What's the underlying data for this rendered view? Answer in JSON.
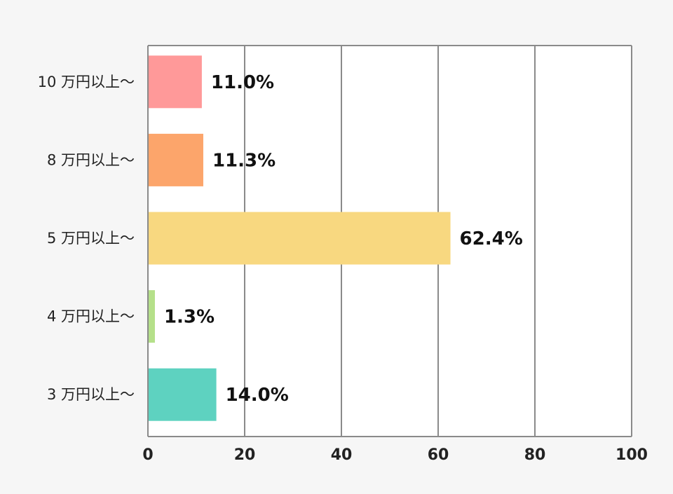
{
  "chart_data": {
    "type": "bar",
    "orientation": "horizontal",
    "categories": [
      "10 万円以上〜",
      "8 万円以上〜",
      "5 万円以上〜",
      "4 万円以上〜",
      "3 万円以上〜"
    ],
    "values": [
      11.0,
      11.3,
      62.4,
      1.3,
      14.0
    ],
    "data_labels": [
      "11.0%",
      "11.3%",
      "62.4%",
      "1.3%",
      "14.0%"
    ],
    "colors": [
      "#ff9999",
      "#fca56b",
      "#f8d880",
      "#b5e08a",
      "#5ed2c0"
    ],
    "xlim": [
      0,
      100
    ],
    "xticks": [
      0,
      20,
      40,
      60,
      80,
      100
    ],
    "xtick_labels": [
      "0",
      "20",
      "40",
      "60",
      "80",
      "100"
    ],
    "grid": true,
    "title": "",
    "xlabel": "",
    "ylabel": ""
  }
}
